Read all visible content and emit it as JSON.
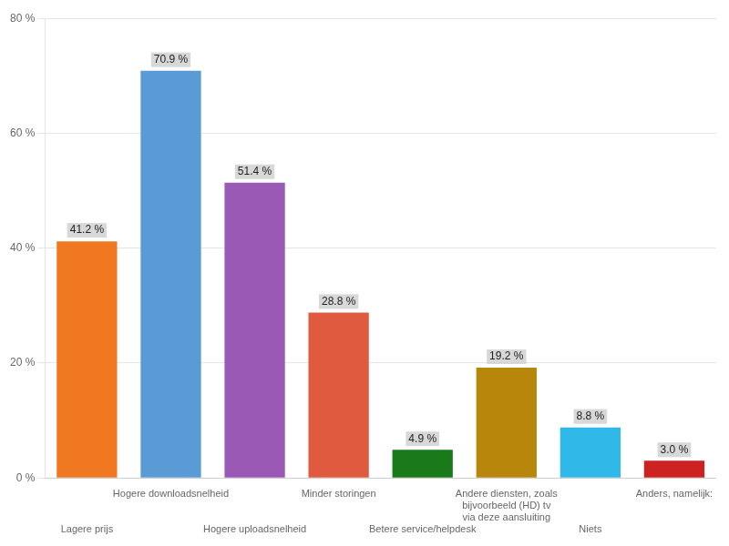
{
  "chart_data": {
    "type": "bar",
    "categories": [
      "Lagere prijs",
      "Hogere downloadsnelheid",
      "Hogere uploadsnelheid",
      "Minder storingen",
      "Betere service/helpdesk",
      "Andere diensten, zoals\nbijvoorbeeld (HD) tv\nvia deze aansluiting",
      "Niets",
      "Anders, namelijk:"
    ],
    "values": [
      41.2,
      70.9,
      51.4,
      28.8,
      4.9,
      19.2,
      8.8,
      3.0
    ],
    "value_labels": [
      "41.2 %",
      "70.9 %",
      "51.4 %",
      "28.8 %",
      "4.9 %",
      "19.2 %",
      "8.8 %",
      "3.0 %"
    ],
    "colors": [
      "#f07820",
      "#5b9bd5",
      "#9b59b6",
      "#e05a40",
      "#1a7a1a",
      "#b8860b",
      "#30b8e8",
      "#cc2222"
    ],
    "ylim": [
      0,
      80
    ],
    "yticks": [
      {
        "value": 0,
        "label": "0 %"
      },
      {
        "value": 20,
        "label": "20 %"
      },
      {
        "value": 40,
        "label": "40 %"
      },
      {
        "value": 60,
        "label": "60 %"
      },
      {
        "value": 80,
        "label": "80 %"
      }
    ],
    "grid": true,
    "data_labels": true
  }
}
